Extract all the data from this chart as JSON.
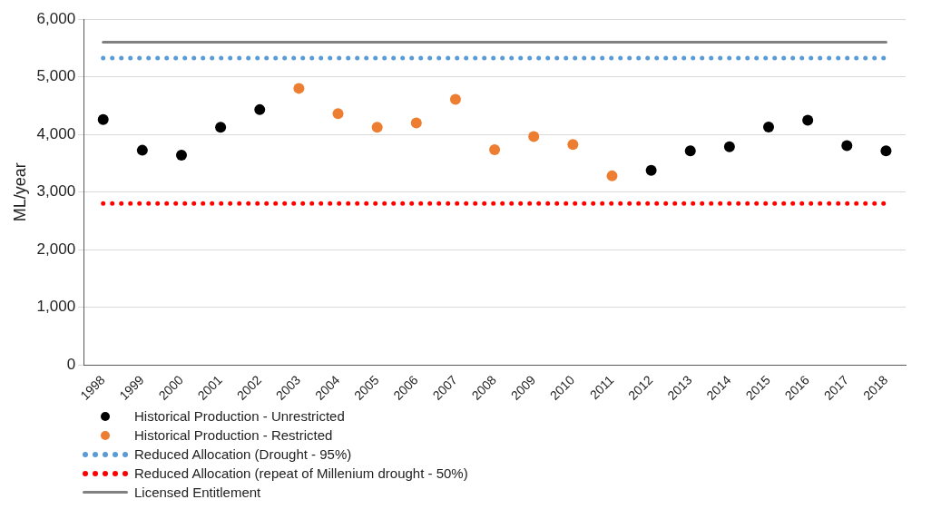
{
  "chart_data": {
    "type": "scatter",
    "ylabel": "ML/year",
    "categories": [
      "1998",
      "1999",
      "2000",
      "2001",
      "2002",
      "2003",
      "2004",
      "2005",
      "2006",
      "2007",
      "2008",
      "2009",
      "2010",
      "2011",
      "2012",
      "2013",
      "2014",
      "2015",
      "2016",
      "2017",
      "2018"
    ],
    "ylim": [
      0,
      6000
    ],
    "yticks": [
      {
        "value": 0,
        "label": "0"
      },
      {
        "value": 1000,
        "label": "1,000"
      },
      {
        "value": 2000,
        "label": "2,000"
      },
      {
        "value": 3000,
        "label": "3,000"
      },
      {
        "value": 4000,
        "label": "4,000"
      },
      {
        "value": 5000,
        "label": "5,000"
      },
      {
        "value": 6000,
        "label": "6,000"
      }
    ],
    "grid": "y",
    "legend": "bottom",
    "marker": "circle",
    "series": [
      {
        "name": "Historical Production - Unrestricted",
        "color": "#000000",
        "values": [
          4260,
          3725,
          3640,
          4125,
          4430,
          null,
          null,
          null,
          null,
          null,
          null,
          null,
          null,
          null,
          3375,
          3715,
          3785,
          4130,
          4245,
          3805,
          3715
        ]
      },
      {
        "name": "Historical Production - Restricted",
        "color": "#ed7d31",
        "values": [
          null,
          null,
          null,
          null,
          null,
          4800,
          4360,
          4125,
          4200,
          4610,
          3735,
          3965,
          3825,
          3280,
          null,
          null,
          null,
          null,
          null,
          null,
          null
        ]
      },
      {
        "name": "Reduced Allocation (Drought - 95%)",
        "type": "line",
        "marker": "none",
        "line_style": "dotted",
        "color": "#5b9bd5",
        "values": [
          5325,
          5325,
          5325,
          5325,
          5325,
          5325,
          5325,
          5325,
          5325,
          5325,
          5325,
          5325,
          5325,
          5325,
          5325,
          5325,
          5325,
          5325,
          5325,
          5325,
          5325
        ]
      },
      {
        "name": "Reduced Allocation (repeat of Millenium drought - 50%)",
        "type": "line",
        "marker": "none",
        "line_style": "dotted",
        "color": "#ff0000",
        "values": [
          2800,
          2800,
          2800,
          2800,
          2800,
          2800,
          2800,
          2800,
          2800,
          2800,
          2800,
          2800,
          2800,
          2800,
          2800,
          2800,
          2800,
          2800,
          2800,
          2800,
          2800
        ]
      },
      {
        "name": "Licensed Entitlement",
        "type": "line",
        "marker": "none",
        "line_style": "solid",
        "color": "#808080",
        "values": [
          5600,
          5600,
          5600,
          5600,
          5600,
          5600,
          5600,
          5600,
          5600,
          5600,
          5600,
          5600,
          5600,
          5600,
          5600,
          5600,
          5600,
          5600,
          5600,
          5600,
          5600
        ]
      }
    ]
  }
}
